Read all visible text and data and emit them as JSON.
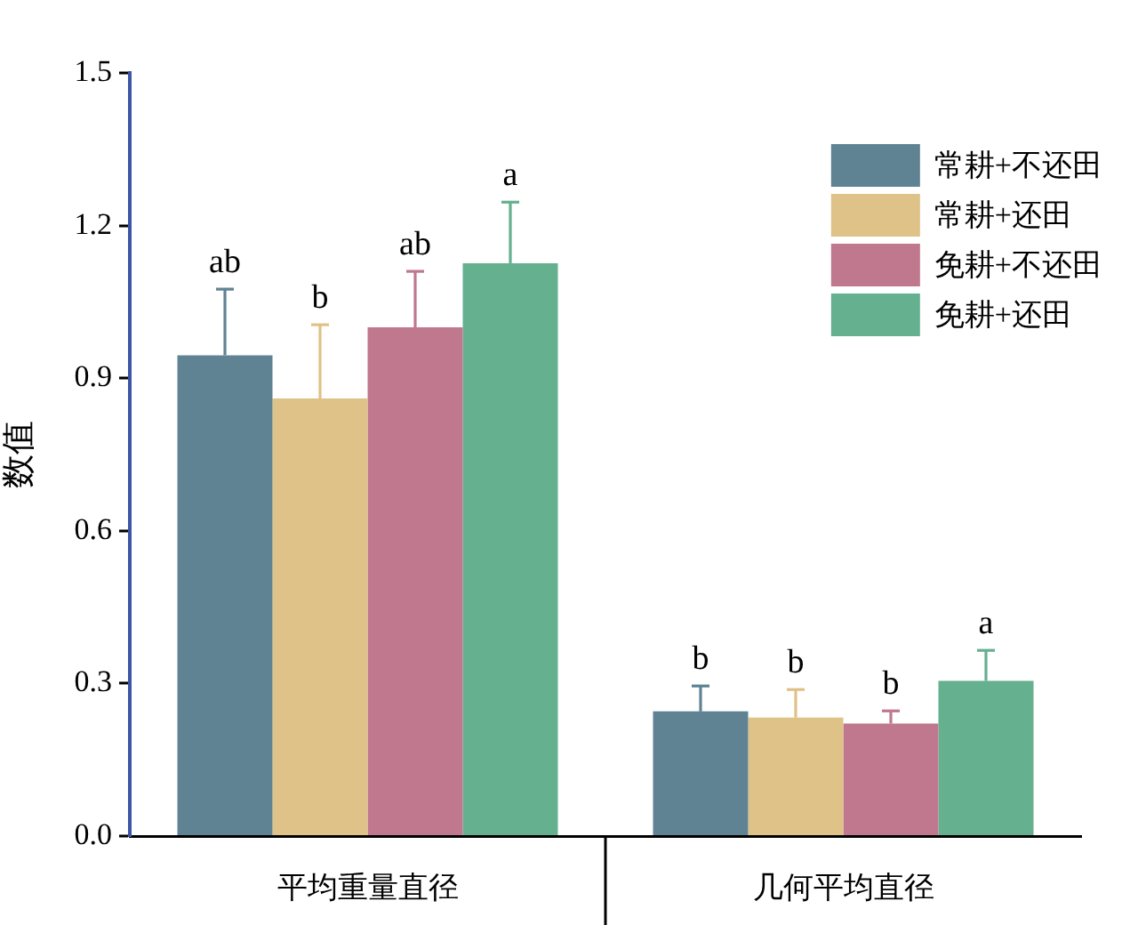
{
  "chart_data": {
    "type": "bar",
    "ylabel": "数值",
    "categories": [
      "平均重量直径",
      "几何平均直径"
    ],
    "series": [
      {
        "name": "常耕+不还田",
        "color": "#5f8393",
        "values": [
          0.945,
          0.245
        ],
        "errors": [
          [
            0.945,
            1.075
          ],
          [
            0.245,
            0.295
          ]
        ],
        "value_labels": [
          "ab",
          "b"
        ]
      },
      {
        "name": "常耕+还田",
        "color": "#dfc287",
        "values": [
          0.86,
          0.233
        ],
        "errors": [
          [
            0.86,
            1.005
          ],
          [
            0.233,
            0.288
          ]
        ],
        "value_labels": [
          "b",
          "b"
        ]
      },
      {
        "name": "免耕+不还田",
        "color": "#bf788e",
        "values": [
          1.0,
          0.221
        ],
        "errors": [
          [
            1.0,
            1.11
          ],
          [
            0.221,
            0.246
          ]
        ],
        "value_labels": [
          "ab",
          "b"
        ]
      },
      {
        "name": "免耕+还田",
        "color": "#65b08f",
        "values": [
          1.126,
          0.305
        ],
        "errors": [
          [
            1.126,
            1.246
          ],
          [
            0.305,
            0.365
          ]
        ],
        "value_labels": [
          "a",
          "a"
        ]
      }
    ],
    "ylim": [
      0,
      1.5
    ],
    "yticks": [
      {
        "value": 0,
        "label": "0.0"
      },
      0.3,
      0.6,
      0.9,
      1.2,
      1.5
    ],
    "grid": false,
    "legend": "top right"
  }
}
